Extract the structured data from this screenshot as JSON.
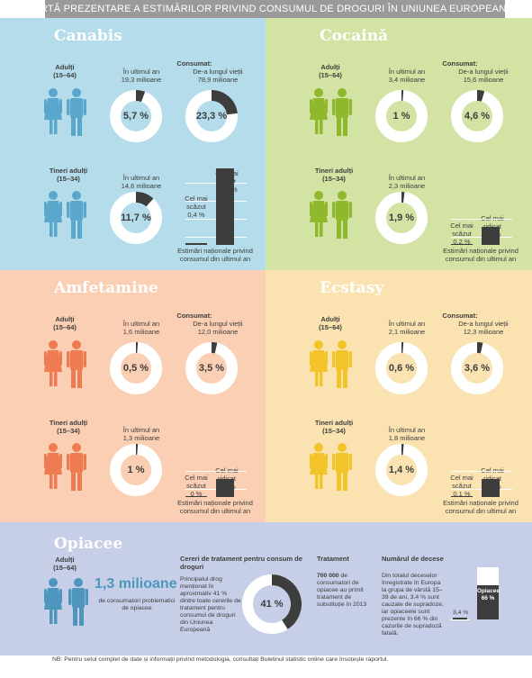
{
  "header": {
    "title": "SCURTĂ PREZENTARE A ESTIMĂRILOR PRIVIND CONSUMUL DE DROGURI ÎN UNIUNEA EUROPEANĂ"
  },
  "common": {
    "consumat": "Consumat:",
    "adulti": "Adulți",
    "adulti_age": "(15–64)",
    "tineri": "Tineri adulți",
    "tineri_age": "(15–34)",
    "ultimul_an": "În ultimul an",
    "de_a_lungul": "De-a lungul vieții",
    "cel_mai_scazut": "Cel mai scăzut",
    "cel_mai_ridicat": "Cel mai ridicat",
    "estimari": "Estimări naționale privind consumul din ultimul an"
  },
  "colors": {
    "canabis": "#5aa7cb",
    "cocaina": "#8fb82d",
    "amfe": "#ef7b52",
    "ecstasy": "#f3c42a",
    "opi": "#4f96bd",
    "dark": "#3d3d3d"
  },
  "panels": [
    {
      "key": "canabis",
      "title": "Canabis",
      "adult_year_count": "19,3 milioane",
      "adult_year_pct": "5,7 %",
      "adult_year_frac": 0.057,
      "adult_life_count": "78,9 milioane",
      "adult_life_pct": "23,3 %",
      "adult_life_frac": 0.233,
      "young_year_count": "14,6 milioane",
      "young_year_pct": "11,7 %",
      "young_year_frac": 0.117,
      "low_val": "0,4 %",
      "high_val": "22,1 %",
      "low_frac": 0.018,
      "high_frac": 1.0
    },
    {
      "key": "cocaina",
      "title": "Cocaină",
      "adult_year_count": "3,4 milioane",
      "adult_year_pct": "1 %",
      "adult_year_frac": 0.01,
      "adult_life_count": "15,6 milioane",
      "adult_life_pct": "4,6 %",
      "adult_life_frac": 0.046,
      "young_year_count": "2,3 milioane",
      "young_year_pct": "1,9 %",
      "young_year_frac": 0.019,
      "low_val": "0,2 %",
      "high_val": "4,2 %",
      "low_frac": 0.048,
      "high_frac": 1.0
    },
    {
      "key": "amfe",
      "title": "Amfetamine",
      "adult_year_count": "1,6 milioane",
      "adult_year_pct": "0,5 %",
      "adult_year_frac": 0.005,
      "adult_life_count": "12,0 milioane",
      "adult_life_pct": "3,5 %",
      "adult_life_frac": 0.035,
      "young_year_count": "1,3 milioane",
      "young_year_pct": "1 %",
      "young_year_frac": 0.01,
      "low_val": "0 %",
      "high_val": "2,5 %",
      "low_frac": 0.0,
      "high_frac": 1.0
    },
    {
      "key": "ecstasy",
      "title": "Ecstasy",
      "adult_year_count": "2,1 milioane",
      "adult_year_pct": "0,6 %",
      "adult_year_frac": 0.006,
      "adult_life_count": "12,3 milioane",
      "adult_life_pct": "3,6 %",
      "adult_life_frac": 0.036,
      "young_year_count": "1,8 milioane",
      "young_year_pct": "1,4 %",
      "young_year_frac": 0.014,
      "low_val": "0,1 %",
      "high_val": "3,1 %",
      "low_frac": 0.032,
      "high_frac": 1.0
    }
  ],
  "opiacee": {
    "title": "Opiacee",
    "big": "1,3 milioane",
    "big_sub": "de consumatori problematici de opiacee",
    "cereri_title": "Cereri de tratament pentru consum de droguri",
    "cereri_text": "Principalul drog menționat în aproximativ 41 % dintre toate cererile de tratament pentru consumul de droguri din Uniunea Europeană",
    "cereri_pct": "41 %",
    "cereri_frac": 0.41,
    "tratament_title": "Tratament",
    "tratament_bold": "700 000",
    "tratament_text": "de consumatori de opiacee au primit tratament de substituție în 2013",
    "decese_title": "Numărul de decese",
    "decese_text": "Din totalul deceselor înregistrate în Europa la grupa de vârstă 15–39 de ani, 3,4 % sunt cauzate de supradoze, iar opiaceele sunt prezente în 66 % din cazurile de supradoză fatală.",
    "bar_small": "3,4 %",
    "bar_big_label": "Opiacee",
    "bar_big_val": "66 %",
    "bar_overdose_frac": 0.034,
    "bar_opiate_frac": 0.66
  },
  "footer_note": "NB: Pentru setul complet de date și informații privind metodologia, consultați Buletinul statistic online care însoțește raportul."
}
